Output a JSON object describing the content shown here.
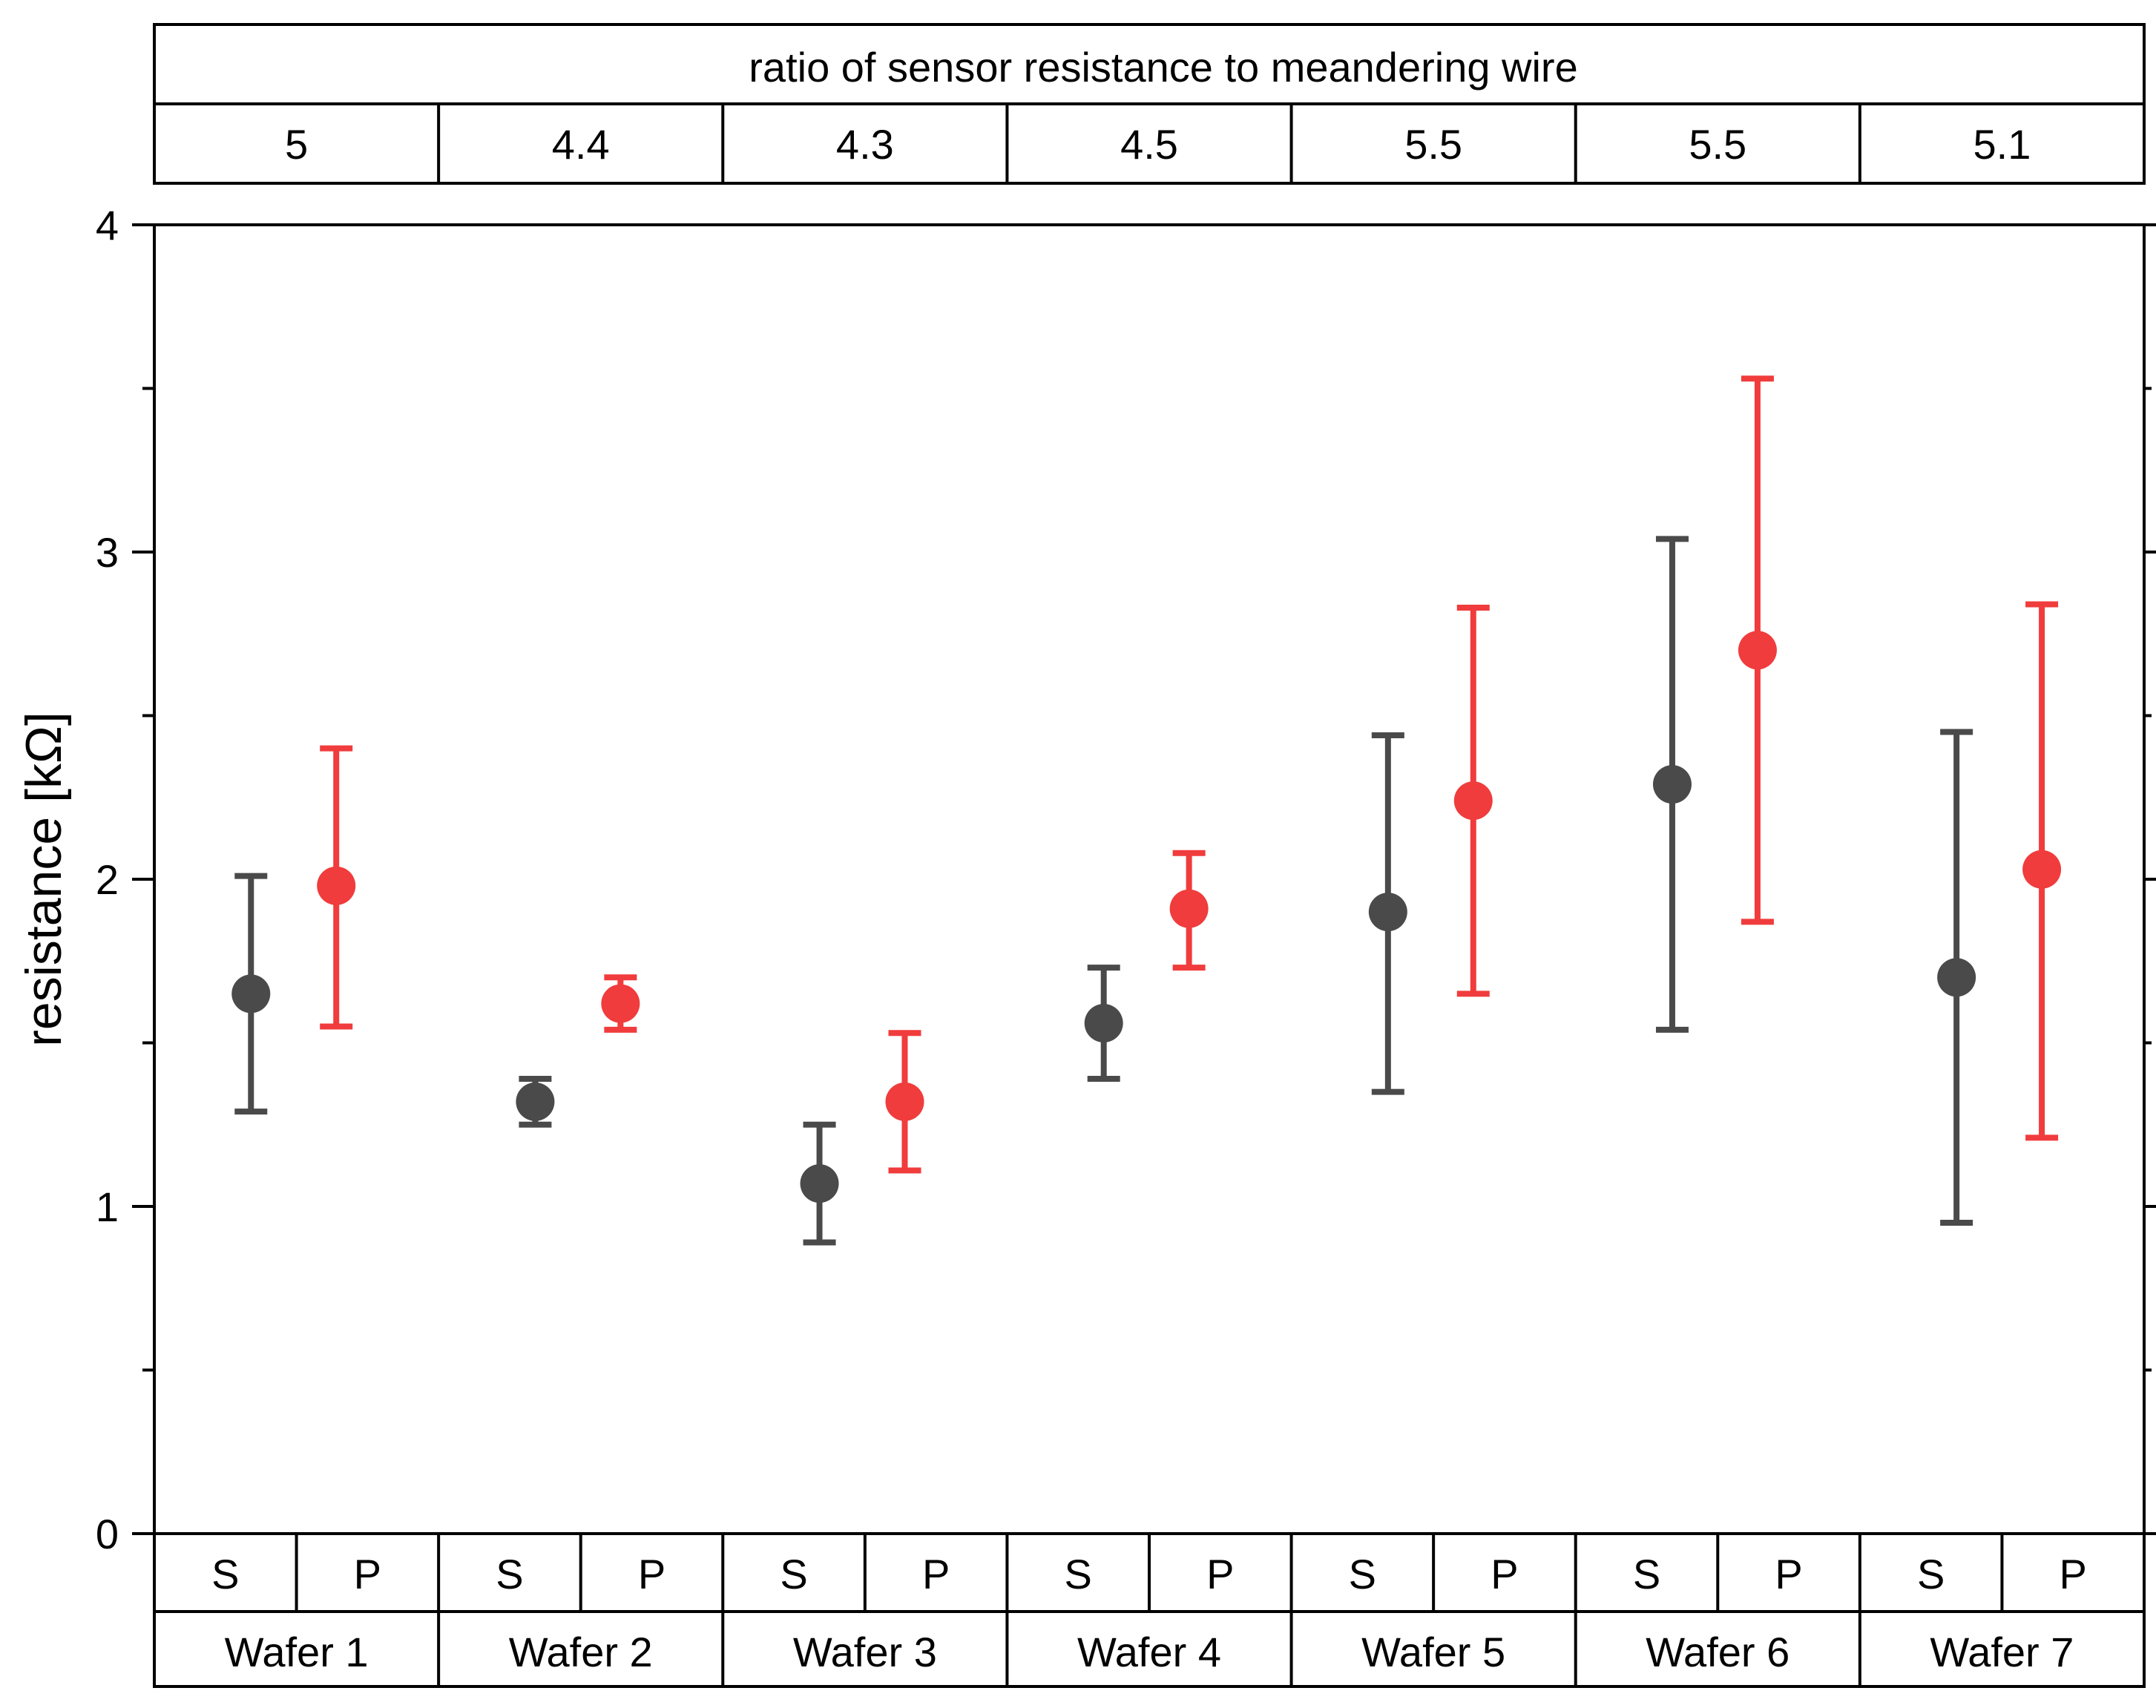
{
  "chart_data": {
    "type": "scatter",
    "title": "",
    "xlabel": "",
    "ylabel": "resistance [kΩ]",
    "ylim": [
      0,
      4
    ],
    "yticks": [
      0,
      1,
      2,
      3,
      4
    ],
    "y_minor_ticks": [
      0.5,
      1.5,
      2.5,
      3.5
    ],
    "grid": false,
    "top_header": {
      "title": "ratio of sensor resistance to meandering wire",
      "ratios": [
        "5",
        "4.4",
        "4.3",
        "4.5",
        "5.5",
        "5.5",
        "5.1"
      ]
    },
    "groups": [
      "Wafer 1",
      "Wafer 2",
      "Wafer 3",
      "Wafer 4",
      "Wafer 5",
      "Wafer 6",
      "Wafer 7"
    ],
    "series": [
      {
        "name": "S",
        "color": "#4a4a4a",
        "values": [
          1.65,
          1.32,
          1.07,
          1.56,
          1.9,
          2.29,
          1.7
        ],
        "err_low": [
          1.29,
          1.25,
          0.89,
          1.39,
          1.35,
          1.54,
          0.95
        ],
        "err_high": [
          2.01,
          1.39,
          1.25,
          1.73,
          2.44,
          3.04,
          2.45
        ]
      },
      {
        "name": "P",
        "color": "#f03c3c",
        "values": [
          1.98,
          1.62,
          1.32,
          1.91,
          2.24,
          2.7,
          2.03
        ],
        "err_low": [
          1.55,
          1.54,
          1.11,
          1.73,
          1.65,
          1.87,
          1.21
        ],
        "err_high": [
          2.4,
          1.7,
          1.53,
          2.08,
          2.83,
          3.53,
          2.84
        ]
      }
    ]
  }
}
